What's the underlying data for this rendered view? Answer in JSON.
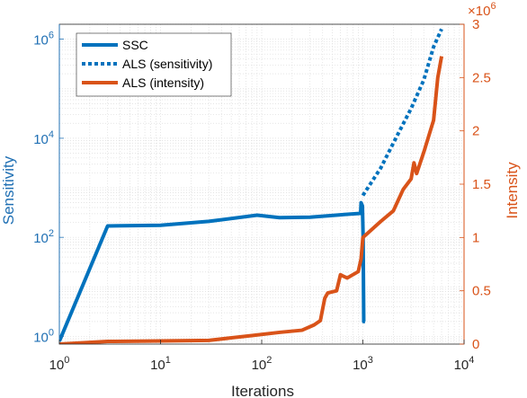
{
  "chart_data": {
    "type": "line",
    "title": "",
    "xlabel": "Iterations",
    "ylabel_left": "Sensitivity",
    "ylabel_right": "Intensity",
    "x_scale": "log",
    "x_lim": [
      1,
      10000
    ],
    "x_ticks": [
      {
        "value": 1,
        "base": "10",
        "exp": "0"
      },
      {
        "value": 10,
        "base": "10",
        "exp": "1"
      },
      {
        "value": 100,
        "base": "10",
        "exp": "2"
      },
      {
        "value": 1000,
        "base": "10",
        "exp": "3"
      },
      {
        "value": 10000,
        "base": "10",
        "exp": "4"
      }
    ],
    "y_left_scale": "log",
    "y_left_lim": [
      0.7,
      2000000
    ],
    "y_left_ticks": [
      {
        "value": 1,
        "base": "10",
        "exp": "0"
      },
      {
        "value": 100,
        "base": "10",
        "exp": "2"
      },
      {
        "value": 10000,
        "base": "10",
        "exp": "4"
      },
      {
        "value": 1000000,
        "base": "10",
        "exp": "6"
      }
    ],
    "y_right_scale": "linear",
    "y_right_lim": [
      0,
      3000000
    ],
    "y_right_ticks": [
      {
        "value": 0,
        "label": "0"
      },
      {
        "value": 500000,
        "label": "0.5"
      },
      {
        "value": 1000000,
        "label": "1"
      },
      {
        "value": 1500000,
        "label": "1.5"
      },
      {
        "value": 2000000,
        "label": "2"
      },
      {
        "value": 2500000,
        "label": "2.5"
      },
      {
        "value": 3000000,
        "label": "3"
      }
    ],
    "y_right_multiplier": {
      "base": "×10",
      "exp": "6"
    },
    "grid": "minor-dotted",
    "legend_position": "top-left",
    "colors": {
      "left_axis": "#2070b4",
      "right_axis": "#d95319",
      "axis": "#262626",
      "grid": "#dcdcdc"
    },
    "series": [
      {
        "name": "SSC",
        "axis": "left",
        "style": "solid",
        "color": "#0072bd",
        "points": [
          [
            1,
            0.8
          ],
          [
            3,
            170
          ],
          [
            10,
            175
          ],
          [
            30,
            210
          ],
          [
            90,
            280
          ],
          [
            150,
            250
          ],
          [
            300,
            255
          ],
          [
            600,
            285
          ],
          [
            950,
            305
          ],
          [
            960,
            500
          ],
          [
            990,
            430
          ],
          [
            1005,
            110
          ],
          [
            1010,
            30
          ],
          [
            1015,
            8
          ],
          [
            1020,
            2
          ],
          [
            1050,
            2
          ]
        ]
      },
      {
        "name": "ALS (sensitivity)",
        "axis": "left",
        "style": "dotted",
        "color": "#0072bd",
        "points": [
          [
            1000,
            700
          ],
          [
            1500,
            2500
          ],
          [
            2000,
            8000
          ],
          [
            3000,
            40000
          ],
          [
            4000,
            150000
          ],
          [
            5000,
            700000
          ],
          [
            6000,
            1600000
          ]
        ]
      },
      {
        "name": "ALS (intensity)",
        "axis": "right",
        "style": "solid",
        "color": "#d95319",
        "points": [
          [
            1,
            0
          ],
          [
            3,
            25000
          ],
          [
            10,
            30000
          ],
          [
            30,
            35000
          ],
          [
            80,
            80000
          ],
          [
            150,
            110000
          ],
          [
            250,
            130000
          ],
          [
            330,
            180000
          ],
          [
            380,
            220000
          ],
          [
            420,
            430000
          ],
          [
            450,
            480000
          ],
          [
            550,
            500000
          ],
          [
            600,
            650000
          ],
          [
            700,
            620000
          ],
          [
            900,
            680000
          ],
          [
            960,
            800000
          ],
          [
            1000,
            1000000
          ],
          [
            1500,
            1150000
          ],
          [
            2000,
            1250000
          ],
          [
            2500,
            1450000
          ],
          [
            3000,
            1550000
          ],
          [
            3200,
            1700000
          ],
          [
            3400,
            1600000
          ],
          [
            4000,
            1800000
          ],
          [
            5000,
            2100000
          ],
          [
            5500,
            2500000
          ],
          [
            6000,
            2700000
          ]
        ]
      }
    ]
  }
}
